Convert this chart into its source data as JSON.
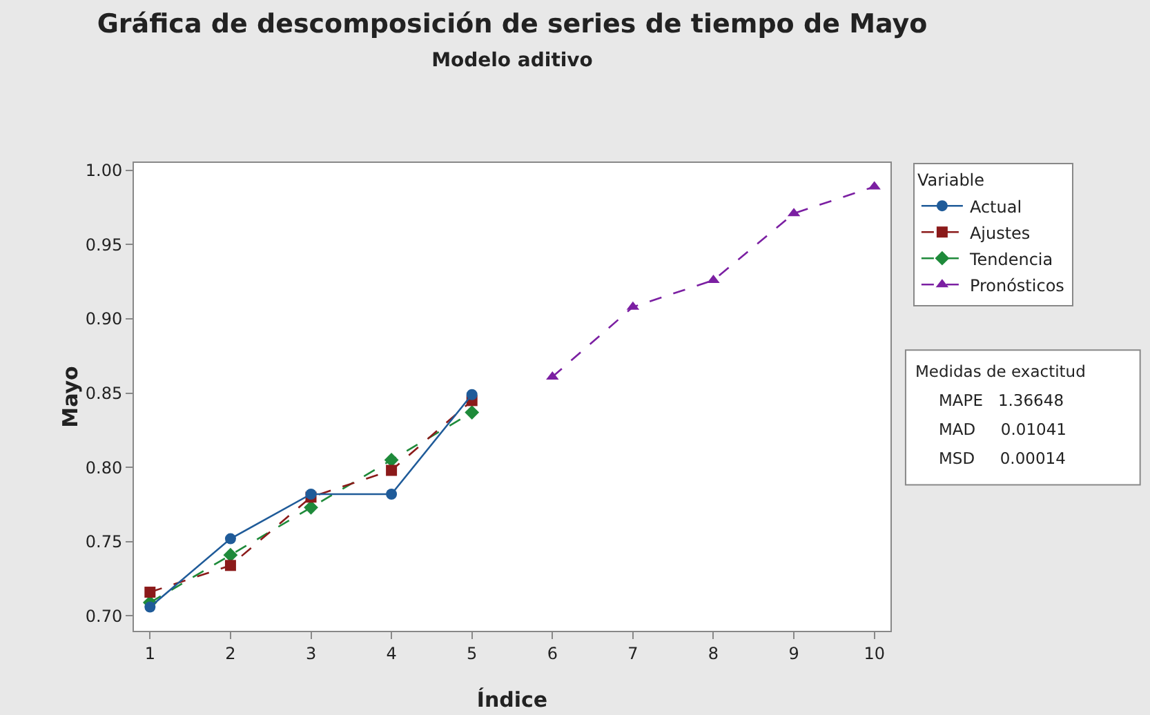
{
  "chart_data": {
    "type": "line",
    "title": "Gráfica de descomposición de series de tiempo de Mayo",
    "subtitle": "Modelo aditivo",
    "xlabel": "Índice",
    "ylabel": "Mayo",
    "legend_title": "Variable",
    "xlim": [
      0.8,
      10.2
    ],
    "xticks": [
      1,
      2,
      3,
      4,
      5,
      6,
      7,
      8,
      9,
      10
    ],
    "ylim": [
      0.69,
      1.005
    ],
    "yticks": [
      {
        "value": 0.7,
        "label": "0.70"
      },
      {
        "value": 0.75,
        "label": "0.75"
      },
      {
        "value": 0.8,
        "label": "0.80"
      },
      {
        "value": 0.85,
        "label": "0.85"
      },
      {
        "value": 0.9,
        "label": "0.90"
      },
      {
        "value": 0.95,
        "label": "0.95"
      },
      {
        "value": 1.0,
        "label": "1.00"
      }
    ],
    "grid": false,
    "legend": "top right",
    "series": [
      {
        "name": "Actual",
        "color": "#1f5b99",
        "marker": "circle",
        "line_style": "solid",
        "x": [
          1,
          2,
          3,
          4,
          5
        ],
        "values": [
          0.706,
          0.752,
          0.782,
          0.782,
          0.849
        ]
      },
      {
        "name": "Ajustes",
        "color": "#8b1a1a",
        "marker": "square",
        "line_style": "dashed",
        "x": [
          1,
          2,
          3,
          4,
          5
        ],
        "values": [
          0.716,
          0.734,
          0.78,
          0.798,
          0.845
        ]
      },
      {
        "name": "Tendencia",
        "color": "#1e8a3a",
        "marker": "diamond",
        "line_style": "dashed",
        "x": [
          1,
          2,
          3,
          4,
          5
        ],
        "values": [
          0.709,
          0.741,
          0.773,
          0.805,
          0.837
        ]
      },
      {
        "name": "Pronósticos",
        "color": "#7b1fa2",
        "marker": "triangle",
        "line_style": "dashed",
        "x": [
          6,
          7,
          8,
          9,
          10
        ],
        "values": [
          0.861,
          0.908,
          0.926,
          0.971,
          0.989
        ]
      }
    ],
    "annotations": [
      "Medidas de exactitud",
      "MAPE   1.36648",
      "MAD     0.01041",
      "MSD     0.00014"
    ]
  }
}
